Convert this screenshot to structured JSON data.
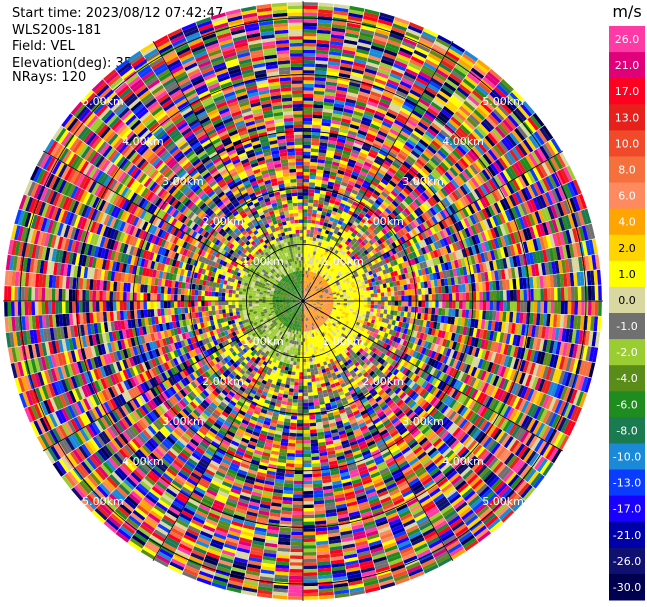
{
  "header": {
    "start_time": "Start time: 2023/08/12 07:42:47",
    "instrument": "WLS200s-181",
    "field": "Field: VEL",
    "elevation": "Elevation(deg): 35.30",
    "nrays": "NRays: 120"
  },
  "chart_data": {
    "type": "heatmap",
    "projection": "polar-ppi",
    "field": "VEL",
    "unit_label": "m/s",
    "range_rings": [
      "1.00km",
      "2.00km",
      "3.00km",
      "4.00km",
      "5.00km"
    ],
    "range_rings_km": [
      1,
      2,
      3,
      4,
      5
    ],
    "max_range_km": 5.3,
    "nrays": 120,
    "colorbar": {
      "ticks": [
        "26.0",
        "21.0",
        "17.0",
        "13.0",
        "10.0",
        "8.0",
        "6.0",
        "4.0",
        "2.0",
        "1.0",
        "0.0",
        "-1.0",
        "-2.0",
        "-4.0",
        "-6.0",
        "-8.0",
        "-10.0",
        "-13.0",
        "-17.0",
        "-21.0",
        "-26.0",
        "-30.0"
      ],
      "colors": [
        "#ff3aa6",
        "#e0007a",
        "#ff0020",
        "#e8201c",
        "#f04a2a",
        "#f5703c",
        "#ff8a60",
        "#ffa400",
        "#ffd400",
        "#ffff00",
        "#d8d8a0",
        "#707070",
        "#9acd32",
        "#5a8c1a",
        "#1e8c1e",
        "#1a7a50",
        "#1a8ad8",
        "#0a3cff",
        "#1a00ff",
        "#0000a8",
        "#101070",
        "#000050"
      ]
    },
    "field_description": {
      "inner_region_km": 1.1,
      "west_half_inner": "negative (green/olive, -2 to -6 m/s)",
      "east_half_inner": "positive (yellow, 1 to 4 m/s)",
      "outer_region": "noise (random colors across full scale)"
    }
  }
}
